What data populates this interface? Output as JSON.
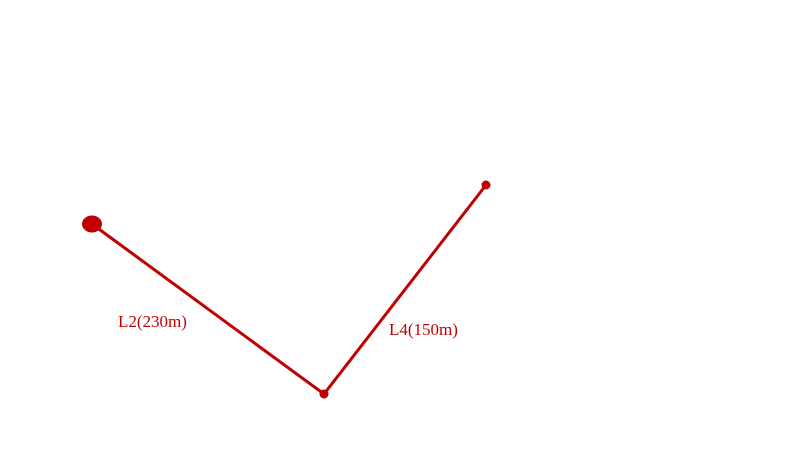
{
  "colors": {
    "line": "#c00000"
  },
  "segments": [
    {
      "label": "L2(230m)"
    },
    {
      "label": "L4(150m)"
    }
  ]
}
